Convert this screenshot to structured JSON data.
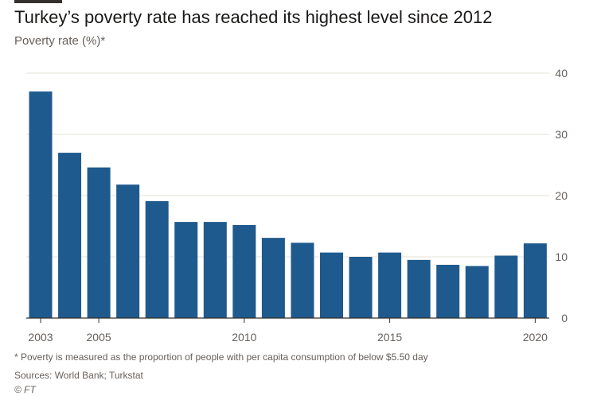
{
  "title": "Turkey’s poverty rate has reached its highest level since 2012",
  "subtitle": "Poverty rate (%)*",
  "footnote": "* Poverty is measured as the proportion of people with per capita consumption of below $5.50 day",
  "source": "Sources: World Bank; Turkstat",
  "credit": "© FT",
  "colors": {
    "bar": "#1f5a8e",
    "grid": "#e6e0d8",
    "axis": "#33302e",
    "tick_text": "#66605c",
    "title": "#1a1817"
  },
  "chart_data": {
    "type": "bar",
    "title": "Turkey’s poverty rate has reached its highest level since 2012",
    "subtitle": "Poverty rate (%)*",
    "categories": [
      "2003",
      "2004",
      "2005",
      "2006",
      "2007",
      "2008",
      "2009",
      "2010",
      "2011",
      "2012",
      "2013",
      "2014",
      "2015",
      "2016",
      "2017",
      "2018",
      "2019",
      "2020"
    ],
    "values": [
      37.0,
      27.0,
      24.6,
      21.8,
      19.1,
      15.7,
      15.7,
      15.2,
      13.1,
      12.3,
      10.7,
      10.0,
      10.7,
      9.5,
      8.7,
      8.5,
      10.2,
      12.2
    ],
    "x_tick_labels": [
      "2003",
      "2005",
      "2010",
      "2015",
      "2020"
    ],
    "y_ticks": [
      0,
      10,
      20,
      30,
      40
    ],
    "ylim": [
      0,
      40
    ],
    "y_axis_side": "right",
    "grid": true,
    "legend": "none"
  }
}
